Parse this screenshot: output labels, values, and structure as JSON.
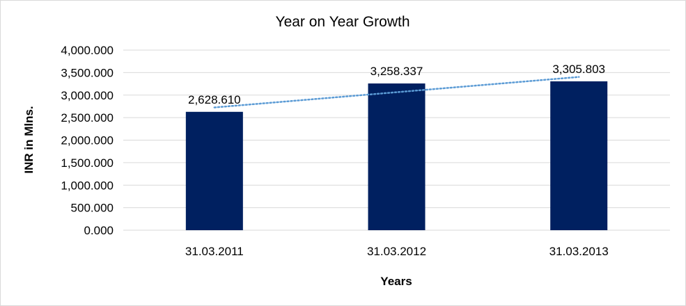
{
  "chart_data": {
    "type": "bar",
    "title": "Year on Year Growth",
    "xlabel": "Years",
    "ylabel": "INR in Mlns.",
    "categories": [
      "31.03.2011",
      "31.03.2012",
      "31.03.2013"
    ],
    "values": [
      2628.61,
      3258.337,
      3305.803
    ],
    "data_labels": [
      "2,628.610",
      "3,258.337",
      "3,305.803"
    ],
    "ylim": [
      0,
      4000
    ],
    "yticks": [
      0,
      500,
      1000,
      1500,
      2000,
      2500,
      3000,
      3500,
      4000
    ],
    "ytick_labels": [
      "0.000",
      "500.000",
      "1,000.000",
      "1,500.000",
      "2,000.000",
      "2,500.000",
      "3,000.000",
      "3,500.000",
      "4,000.000"
    ],
    "grid": true,
    "trendline": "linear",
    "colors": {
      "bar": "#002060",
      "trendline": "#5b9bd5",
      "grid": "#d9d9d9"
    }
  }
}
